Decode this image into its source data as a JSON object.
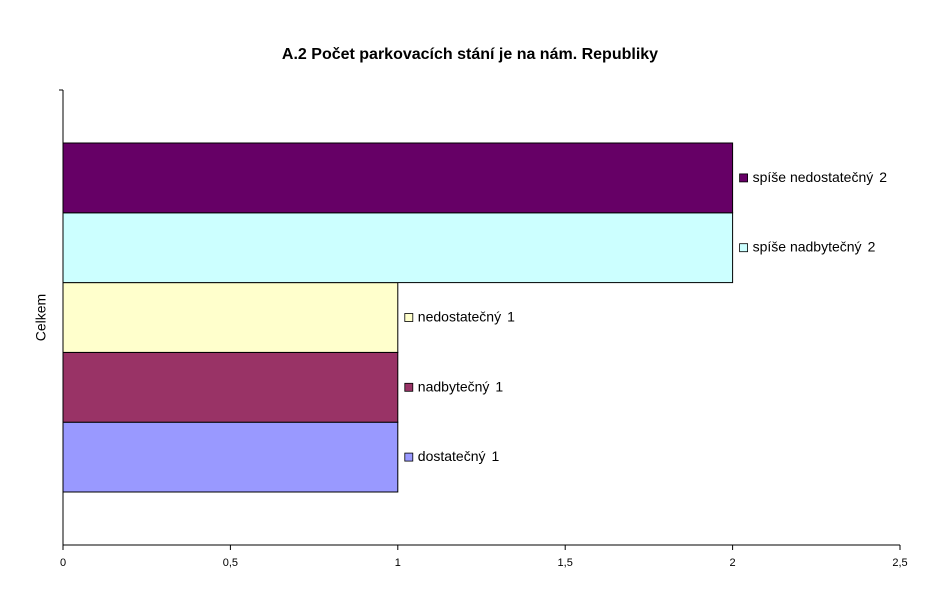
{
  "chart_data": {
    "type": "hbar",
    "title": "A.2  Počet parkovacích stání je na nám. Republiky",
    "categories": [
      "Celkem"
    ],
    "series": [
      {
        "name": "dostatečný",
        "color": "#9999ff",
        "values": [
          1
        ]
      },
      {
        "name": "nadbytečný",
        "color": "#993366",
        "values": [
          1
        ]
      },
      {
        "name": "nedostatečný",
        "color": "#ffffcc",
        "values": [
          1
        ]
      },
      {
        "name": "spíše nadbytečný",
        "color": "#ccffff",
        "values": [
          2
        ]
      },
      {
        "name": "spíše nedostatečný",
        "color": "#660066",
        "values": [
          2
        ]
      }
    ],
    "xlim": [
      0,
      2.5
    ],
    "xticks": [
      0,
      {
        "value": 0.5,
        "label": "0,5"
      },
      1,
      {
        "value": 1.5,
        "label": "1,5"
      },
      2,
      {
        "value": 2.5,
        "label": "2,5"
      }
    ],
    "grid": false
  }
}
